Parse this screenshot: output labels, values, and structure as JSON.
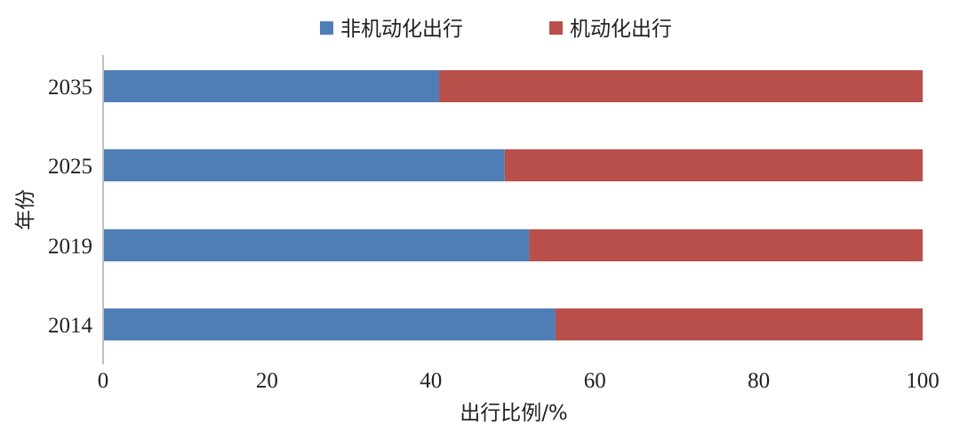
{
  "chart_data": {
    "type": "bar",
    "orientation": "horizontal",
    "stacked": true,
    "categories": [
      "2035",
      "2025",
      "2019",
      "2014"
    ],
    "series": [
      {
        "name": "非机动化出行",
        "color": "#4F7EB7",
        "values": [
          41,
          49,
          52,
          55.2
        ]
      },
      {
        "name": "机动化出行",
        "color": "#B84F4B",
        "values": [
          59,
          51,
          48,
          44.8
        ]
      }
    ],
    "xlabel": "出行比例/%",
    "ylabel": "年份",
    "xlim": [
      0,
      100
    ],
    "xticks": [
      "0",
      "20",
      "40",
      "60",
      "80",
      "100"
    ],
    "grid": false,
    "legend_position": "top-center"
  }
}
